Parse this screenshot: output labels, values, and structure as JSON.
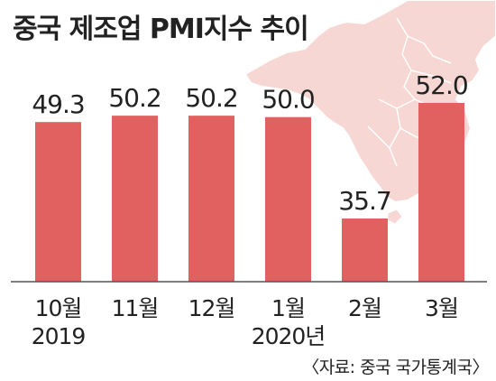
{
  "colors": {
    "bar": "#e0615f",
    "map": "#f6d7d3",
    "map_outline": "#ffffff",
    "text": "#222222",
    "rule": "#555555"
  },
  "decorations": {
    "background_image": "map-of-china"
  },
  "chart_data": {
    "type": "bar",
    "title": "중국 제조업 PMI지수 추이",
    "categories": [
      "10월",
      "11월",
      "12월",
      "1월",
      "2월",
      "3월"
    ],
    "year_labels": [
      "2019",
      "",
      "",
      "2020년",
      "",
      ""
    ],
    "values": [
      49.3,
      50.2,
      50.2,
      50.0,
      35.7,
      52.0
    ],
    "value_labels": [
      "49.3",
      "50.2",
      "50.2",
      "50.0",
      "35.7",
      "52.0"
    ],
    "source": "〈자료: 중국 국가통계국〉",
    "xlabel": "",
    "ylabel": "",
    "grid": false,
    "legend": "none"
  }
}
